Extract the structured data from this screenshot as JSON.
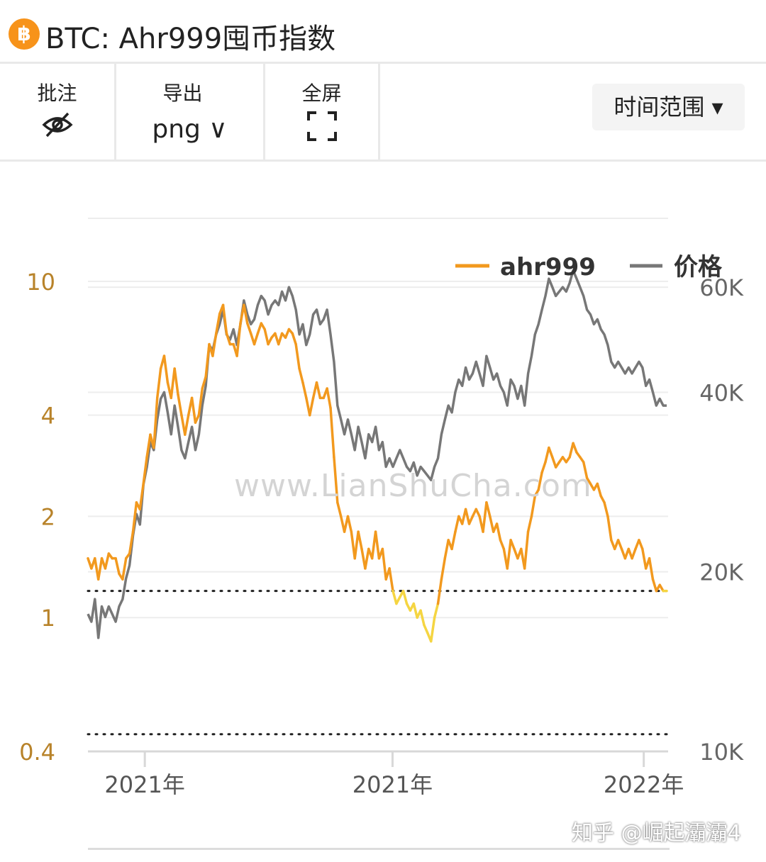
{
  "header": {
    "logo_glyph": "฿",
    "title": "BTC: Ahr999囤币指数"
  },
  "toolbar": {
    "annotate_label": "批注",
    "export_label": "导出",
    "export_format": "png ∨",
    "fullscreen_label": "全屏",
    "time_range_label": "时间范围 ▾"
  },
  "watermark": "www.LianShuCha.com",
  "credit": "知乎 @崛起灞灞4",
  "chart_data": {
    "type": "line",
    "title": "",
    "legend_position": "top-right",
    "grid": true,
    "x_tick_labels": [
      "2021年",
      "2021年",
      "2022年"
    ],
    "y_left": {
      "scale": "log",
      "ticks": [
        0.4,
        1,
        2,
        4,
        10
      ],
      "tick_labels": [
        "0.4",
        "1",
        "2",
        "4",
        "10"
      ],
      "range": [
        0.4,
        16
      ]
    },
    "y_right": {
      "scale": "log",
      "ticks": [
        10000,
        20000,
        40000,
        60000
      ],
      "tick_labels": [
        "10K",
        "20K",
        "40K",
        "60K"
      ],
      "range": [
        10000,
        80000
      ]
    },
    "reference_lines": [
      1.2,
      0.45
    ],
    "colors": {
      "ahr999": "#f2991e",
      "ahr999_low": "#f5d542",
      "price": "#777777"
    },
    "series": [
      {
        "name": "ahr999",
        "axis": "left",
        "values": [
          1.5,
          1.4,
          1.5,
          1.3,
          1.5,
          1.4,
          1.55,
          1.5,
          1.5,
          1.35,
          1.3,
          1.5,
          1.55,
          1.8,
          2.2,
          2.1,
          2.5,
          3.0,
          3.5,
          3.2,
          4.5,
          5.5,
          6.0,
          5.0,
          4.5,
          5.5,
          4.6,
          4.0,
          3.5,
          4.0,
          4.5,
          3.8,
          4.0,
          4.8,
          5.2,
          6.5,
          6.0,
          7.0,
          8.0,
          8.5,
          7.0,
          6.5,
          6.5,
          6.0,
          7.5,
          8.5,
          7.5,
          7.0,
          6.5,
          7.0,
          7.5,
          7.2,
          6.5,
          6.8,
          7.0,
          6.5,
          7.0,
          6.8,
          7.2,
          7.0,
          6.5,
          5.5,
          5.0,
          4.5,
          4.0,
          4.5,
          5.0,
          4.5,
          4.5,
          4.8,
          4.2,
          3.0,
          2.2,
          2.0,
          1.8,
          2.0,
          1.8,
          1.5,
          1.8,
          1.6,
          1.4,
          1.6,
          1.5,
          1.8,
          1.5,
          1.6,
          1.3,
          1.4,
          1.2,
          1.1,
          1.15,
          1.2,
          1.1,
          1.05,
          1.1,
          1.0,
          1.05,
          0.95,
          0.9,
          0.85,
          1.0,
          1.1,
          1.3,
          1.5,
          1.7,
          1.6,
          1.8,
          2.0,
          1.9,
          2.1,
          1.9,
          2.0,
          2.1,
          2.0,
          1.8,
          2.2,
          2.0,
          1.8,
          1.9,
          1.7,
          1.6,
          1.4,
          1.7,
          1.6,
          1.5,
          1.6,
          1.4,
          1.8,
          2.0,
          2.3,
          2.4,
          2.7,
          2.9,
          3.2,
          3.0,
          2.8,
          2.9,
          3.0,
          2.9,
          3.0,
          3.3,
          3.1,
          3.0,
          2.9,
          2.6,
          2.5,
          2.4,
          2.5,
          2.3,
          2.2,
          2.0,
          1.7,
          1.6,
          1.7,
          1.6,
          1.5,
          1.6,
          1.5,
          1.6,
          1.7,
          1.6,
          1.4,
          1.5,
          1.3,
          1.2,
          1.25,
          1.2,
          1.2
        ]
      },
      {
        "name": "价格",
        "axis": "right",
        "values": [
          17000,
          16500,
          18000,
          15500,
          17500,
          16800,
          17500,
          17000,
          16500,
          17500,
          18000,
          19500,
          20500,
          23000,
          25000,
          24000,
          28000,
          30000,
          33000,
          32000,
          36000,
          39000,
          40000,
          37000,
          34000,
          38000,
          35000,
          32000,
          31000,
          33000,
          35000,
          32000,
          34000,
          38000,
          41000,
          48000,
          47000,
          50000,
          52000,
          55000,
          50000,
          49000,
          51000,
          48000,
          52000,
          57000,
          54000,
          52000,
          53000,
          56000,
          58000,
          57000,
          54000,
          56000,
          57000,
          56000,
          59000,
          57000,
          60000,
          58000,
          55000,
          50000,
          52000,
          48000,
          50000,
          54000,
          55000,
          52000,
          53000,
          55000,
          50000,
          45000,
          38000,
          36000,
          34000,
          36000,
          34000,
          32000,
          35000,
          33000,
          31000,
          34000,
          33000,
          35000,
          32000,
          33000,
          30000,
          31000,
          30000,
          31000,
          32000,
          31000,
          30000,
          29500,
          30500,
          29000,
          30000,
          29500,
          29000,
          28500,
          30000,
          31000,
          34000,
          36000,
          38000,
          37000,
          40000,
          42000,
          41000,
          44000,
          42000,
          43000,
          45000,
          43000,
          41000,
          46000,
          44000,
          42000,
          43000,
          41000,
          40000,
          38000,
          42000,
          41000,
          39000,
          41000,
          38000,
          43000,
          46000,
          50000,
          52000,
          55000,
          58000,
          62000,
          60000,
          58000,
          59000,
          60000,
          59000,
          61000,
          64000,
          62000,
          60000,
          58000,
          55000,
          54000,
          52000,
          53000,
          51000,
          50000,
          48000,
          45000,
          44000,
          45000,
          44000,
          43000,
          44000,
          43000,
          44000,
          45000,
          44000,
          41000,
          42000,
          40000,
          38000,
          39000,
          38000,
          38000
        ]
      }
    ]
  }
}
